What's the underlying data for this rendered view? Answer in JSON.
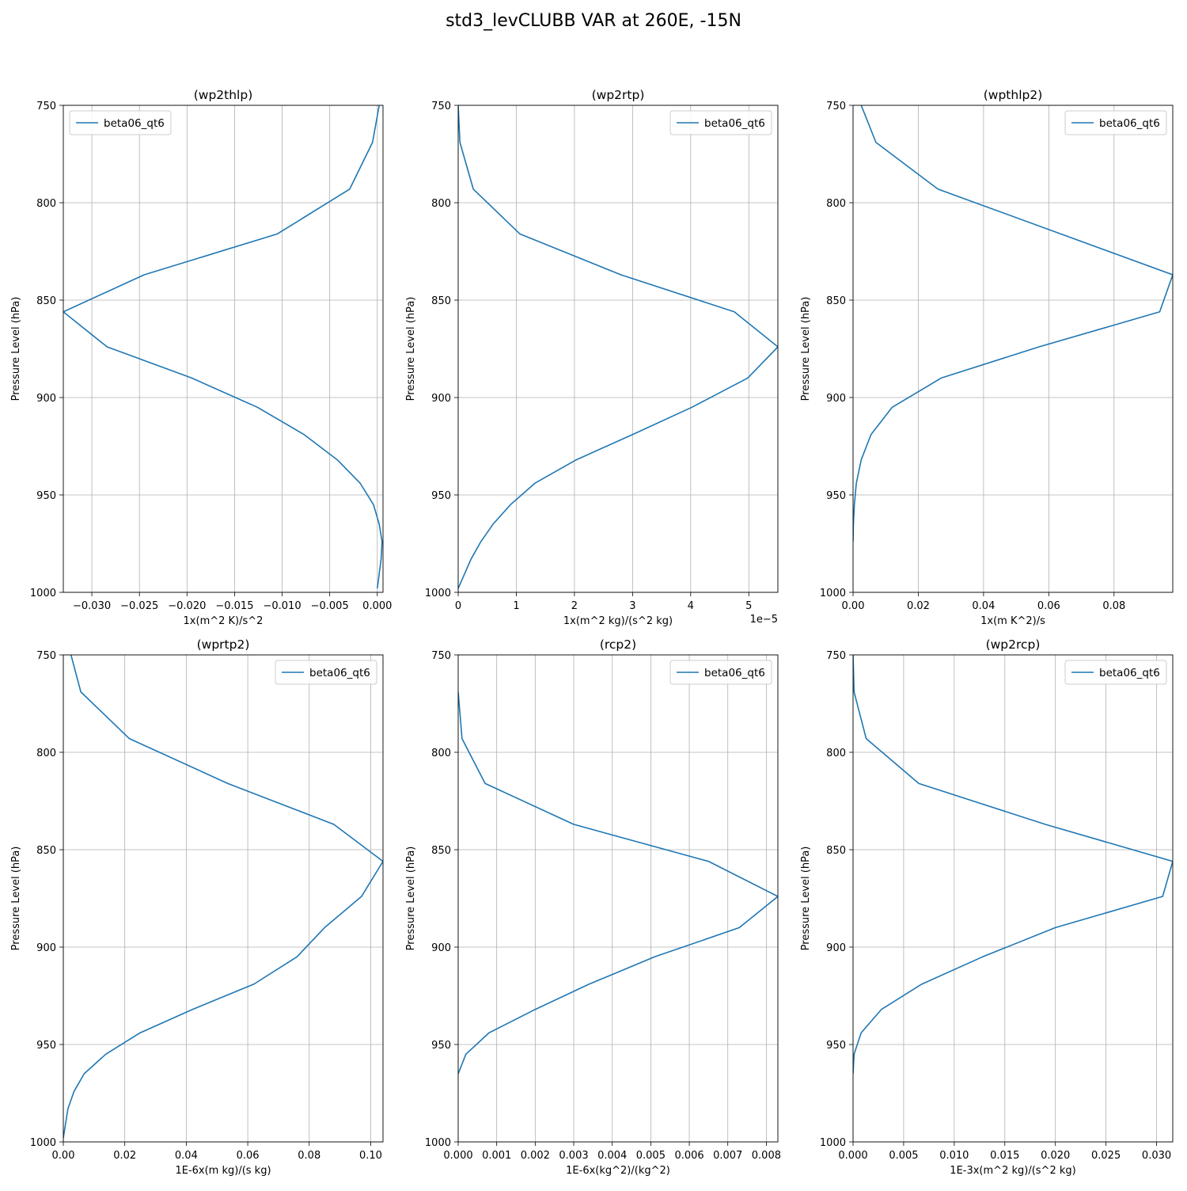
{
  "figure": {
    "title": "std3_levCLUBB VAR at 260E, -15N"
  },
  "chart_data": [
    {
      "type": "line",
      "title": "(wp2thlp)",
      "xlabel": "1x(m^2 K)/s^2",
      "ylabel": "Pressure Level (hPa)",
      "offset_text": "",
      "xlim": [
        -0.033,
        0.0006
      ],
      "ylim": [
        1000,
        750
      ],
      "x_ticks": [
        -0.03,
        -0.025,
        -0.02,
        -0.015,
        -0.01,
        -0.005,
        0.0
      ],
      "x_tick_labels": [
        "−0.030",
        "−0.025",
        "−0.020",
        "−0.015",
        "−0.010",
        "−0.005",
        "0.000"
      ],
      "y_ticks": [
        750,
        800,
        850,
        900,
        950,
        1000
      ],
      "y_tick_labels": [
        "750",
        "800",
        "850",
        "900",
        "950",
        "1000"
      ],
      "grid": true,
      "legend": {
        "loc": "upper-left",
        "entries": [
          "beta06_qt6"
        ]
      },
      "series": [
        {
          "name": "beta06_qt6",
          "color": "#1f77b4",
          "x": [
            0.0002,
            -0.0005,
            -0.0029,
            -0.0105,
            -0.0245,
            -0.033,
            -0.0284,
            -0.0195,
            -0.0126,
            -0.0077,
            -0.0042,
            -0.0018,
            -0.0004,
            0.0002,
            0.0005,
            0.0004,
            0.0
          ],
          "y": [
            750,
            769,
            793,
            816,
            837,
            856,
            874,
            890,
            905,
            919,
            932,
            944,
            955,
            965,
            974,
            983,
            998
          ]
        }
      ]
    },
    {
      "type": "line",
      "title": "(wp2rtp)",
      "xlabel": "1x(m^2 kg)/(s^2 kg)",
      "ylabel": "Pressure Level (hPa)",
      "offset_text": "1e−5",
      "xlim": [
        0,
        5.5
      ],
      "ylim": [
        1000,
        750
      ],
      "x_ticks": [
        0,
        1,
        2,
        3,
        4,
        5
      ],
      "x_tick_labels": [
        "0",
        "1",
        "2",
        "3",
        "4",
        "5"
      ],
      "y_ticks": [
        750,
        800,
        850,
        900,
        950,
        1000
      ],
      "y_tick_labels": [
        "750",
        "800",
        "850",
        "900",
        "950",
        "1000"
      ],
      "grid": true,
      "legend": {
        "loc": "upper-right",
        "entries": [
          "beta06_qt6"
        ]
      },
      "series": [
        {
          "name": "beta06_qt6",
          "color": "#1f77b4",
          "x": [
            0.0,
            0.03,
            0.26,
            1.06,
            2.8,
            4.75,
            5.5,
            4.98,
            4.02,
            3.0,
            2.03,
            1.32,
            0.9,
            0.6,
            0.39,
            0.22,
            0.0
          ],
          "y": [
            750,
            769,
            793,
            816,
            837,
            856,
            874,
            890,
            905,
            919,
            932,
            944,
            955,
            965,
            974,
            983,
            998
          ]
        }
      ]
    },
    {
      "type": "line",
      "title": "(wpthlp2)",
      "xlabel": "1x(m K^2)/s",
      "ylabel": "Pressure Level (hPa)",
      "offset_text": "",
      "xlim": [
        0,
        0.098
      ],
      "ylim": [
        1000,
        750
      ],
      "x_ticks": [
        0.0,
        0.02,
        0.04,
        0.06,
        0.08
      ],
      "x_tick_labels": [
        "0.00",
        "0.02",
        "0.04",
        "0.06",
        "0.08"
      ],
      "y_ticks": [
        750,
        800,
        850,
        900,
        950,
        1000
      ],
      "y_tick_labels": [
        "750",
        "800",
        "850",
        "900",
        "950",
        "1000"
      ],
      "grid": true,
      "legend": {
        "loc": "upper-right",
        "entries": [
          "beta06_qt6"
        ]
      },
      "series": [
        {
          "name": "beta06_qt6",
          "color": "#1f77b4",
          "x": [
            0.0025,
            0.007,
            0.026,
            0.098,
            0.094,
            0.057,
            0.027,
            0.012,
            0.0055,
            0.0025,
            0.001,
            0.0004,
            0.0001,
            0.0
          ],
          "y": [
            750,
            769,
            793,
            837,
            856,
            874,
            890,
            905,
            919,
            932,
            944,
            955,
            965,
            974
          ]
        }
      ]
    },
    {
      "type": "line",
      "title": "(wprtp2)",
      "xlabel": "1E-6x(m kg)/(s kg)",
      "ylabel": "Pressure Level (hPa)",
      "offset_text": "",
      "xlim": [
        0,
        0.104
      ],
      "ylim": [
        1000,
        750
      ],
      "x_ticks": [
        0.0,
        0.02,
        0.04,
        0.06,
        0.08,
        0.1
      ],
      "x_tick_labels": [
        "0.00",
        "0.02",
        "0.04",
        "0.06",
        "0.08",
        "0.10"
      ],
      "y_ticks": [
        750,
        800,
        850,
        900,
        950,
        1000
      ],
      "y_tick_labels": [
        "750",
        "800",
        "850",
        "900",
        "950",
        "1000"
      ],
      "grid": true,
      "legend": {
        "loc": "upper-right",
        "entries": [
          "beta06_qt6"
        ]
      },
      "series": [
        {
          "name": "beta06_qt6",
          "color": "#1f77b4",
          "x": [
            0.0025,
            0.0057,
            0.0215,
            0.0535,
            0.088,
            0.104,
            0.097,
            0.085,
            0.076,
            0.062,
            0.042,
            0.025,
            0.0138,
            0.0068,
            0.0035,
            0.0015,
            0.0
          ],
          "y": [
            750,
            769,
            793,
            816,
            837,
            856,
            874,
            890,
            905,
            919,
            932,
            944,
            955,
            965,
            974,
            983,
            998
          ]
        }
      ]
    },
    {
      "type": "line",
      "title": "(rcp2)",
      "xlabel": "1E-6x(kg^2)/(kg^2)",
      "ylabel": "Pressure Level (hPa)",
      "offset_text": "",
      "xlim": [
        0,
        0.0083
      ],
      "ylim": [
        1000,
        750
      ],
      "x_ticks": [
        0.0,
        0.001,
        0.002,
        0.003,
        0.004,
        0.005,
        0.006,
        0.007,
        0.008
      ],
      "x_tick_labels": [
        "0.000",
        "0.001",
        "0.002",
        "0.003",
        "0.004",
        "0.005",
        "0.006",
        "0.007",
        "0.008"
      ],
      "y_ticks": [
        750,
        800,
        850,
        900,
        950,
        1000
      ],
      "y_tick_labels": [
        "750",
        "800",
        "850",
        "900",
        "950",
        "1000"
      ],
      "grid": true,
      "legend": {
        "loc": "upper-right",
        "entries": [
          "beta06_qt6"
        ]
      },
      "series": [
        {
          "name": "beta06_qt6",
          "color": "#1f77b4",
          "x": [
            0.0,
            0.0001,
            0.0007,
            0.003,
            0.0065,
            0.0083,
            0.0073,
            0.0051,
            0.0034,
            0.002,
            0.0008,
            0.0002,
            0.0
          ],
          "y": [
            769,
            793,
            816,
            837,
            856,
            874,
            890,
            905,
            919,
            932,
            944,
            955,
            965
          ]
        }
      ]
    },
    {
      "type": "line",
      "title": "(wp2rcp)",
      "xlabel": "1E-3x(m^2 kg)/(s^2 kg)",
      "ylabel": "Pressure Level (hPa)",
      "offset_text": "",
      "xlim": [
        0,
        0.0316
      ],
      "ylim": [
        1000,
        750
      ],
      "x_ticks": [
        0.0,
        0.005,
        0.01,
        0.015,
        0.02,
        0.025,
        0.03
      ],
      "x_tick_labels": [
        "0.000",
        "0.005",
        "0.010",
        "0.015",
        "0.020",
        "0.025",
        "0.030"
      ],
      "y_ticks": [
        750,
        800,
        850,
        900,
        950,
        1000
      ],
      "y_tick_labels": [
        "750",
        "800",
        "850",
        "900",
        "950",
        "1000"
      ],
      "grid": true,
      "legend": {
        "loc": "upper-right",
        "entries": [
          "beta06_qt6"
        ]
      },
      "series": [
        {
          "name": "beta06_qt6",
          "color": "#1f77b4",
          "x": [
            0.0,
            0.0001,
            0.0013,
            0.0065,
            0.019,
            0.0316,
            0.0306,
            0.02,
            0.0128,
            0.0068,
            0.0028,
            0.0008,
            0.0001,
            0.0
          ],
          "y": [
            750,
            769,
            793,
            816,
            837,
            856,
            874,
            890,
            905,
            919,
            932,
            944,
            955,
            965
          ]
        }
      ]
    }
  ]
}
